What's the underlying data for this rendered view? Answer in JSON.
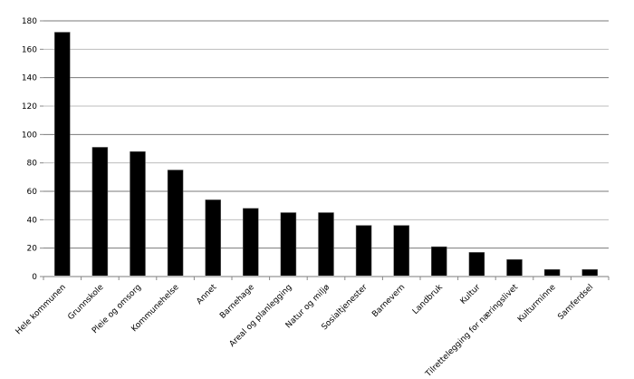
{
  "chart_data": {
    "type": "bar",
    "title": "",
    "xlabel": "",
    "ylabel": "",
    "ylim": [
      0,
      180
    ],
    "yticks": [
      0,
      20,
      40,
      60,
      80,
      100,
      120,
      140,
      160,
      180
    ],
    "grid": true,
    "legend": "none",
    "bar_color": "#000000",
    "grid_color": "#a0a0a0",
    "categories": [
      "Hele kommunen",
      "Grunnskole",
      "Pleie og omsorg",
      "Kommunehelse",
      "Annet",
      "Barnehage",
      "Areal og planlegging",
      "Natur og miljø",
      "Sosialtjenester",
      "Barnevern",
      "Landbruk",
      "Kultur",
      "Tilrettelegging for næringslivet",
      "Kulturminne",
      "Samferdsel"
    ],
    "values": [
      172,
      91,
      88,
      75,
      54,
      48,
      45,
      45,
      36,
      36,
      21,
      17,
      12,
      5,
      5
    ]
  }
}
